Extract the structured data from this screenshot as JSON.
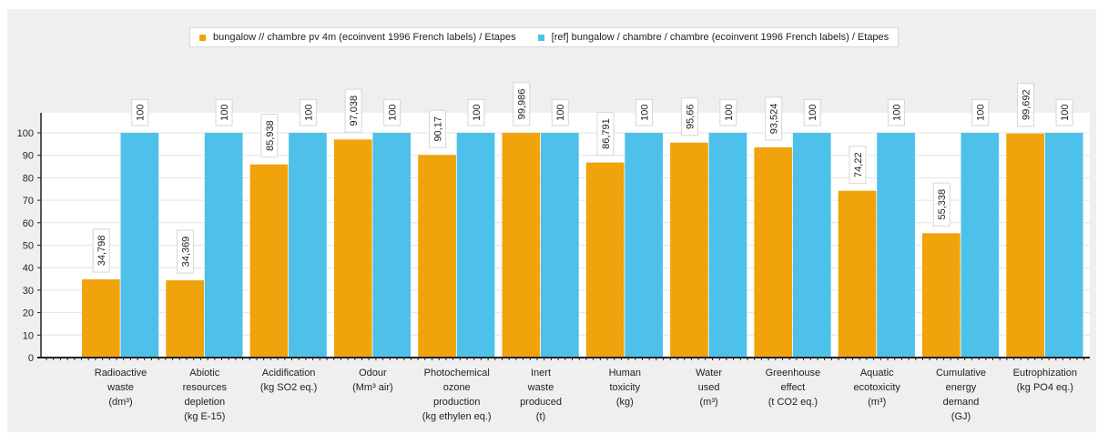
{
  "chart_data": {
    "type": "bar",
    "categories": [
      [
        "Radioactive",
        "waste",
        "(dm³)"
      ],
      [
        "Abiotic",
        "resources",
        "depletion",
        "(kg E-15)"
      ],
      [
        "Acidification",
        "(kg SO2 eq.)"
      ],
      [
        "Odour",
        "(Mm³ air)"
      ],
      [
        "Photochemical",
        "ozone",
        "production",
        "(kg ethylen eq.)"
      ],
      [
        "Inert",
        "waste",
        "produced",
        "(t)"
      ],
      [
        "Human",
        "toxicity",
        "(kg)"
      ],
      [
        "Water",
        "used",
        "(m³)"
      ],
      [
        "Greenhouse",
        "effect",
        "(t CO2 eq.)"
      ],
      [
        "Aquatic",
        "ecotoxicity",
        "(m³)"
      ],
      [
        "Cumulative",
        "energy",
        "demand",
        "(GJ)"
      ],
      [
        "Eutrophization",
        "(kg PO4 eq.)"
      ]
    ],
    "series": [
      {
        "name": "bungalow // chambre  pv 4m (ecoinvent 1996 French labels) / Etapes",
        "color": "#f0a30a",
        "values": [
          34.798,
          34.369,
          85.938,
          97.038,
          90.17,
          99.986,
          86.791,
          95.66,
          93.524,
          74.22,
          55.338,
          99.692
        ],
        "labels": [
          "34,798",
          "34,369",
          "85,938",
          "97,038",
          "90,17",
          "99,986",
          "86,791",
          "95,66",
          "93,524",
          "74,22",
          "55,338",
          "99,692"
        ]
      },
      {
        "name": "[ref] bungalow / chambre  / chambre (ecoinvent 1996 French labels) / Etapes",
        "color": "#4dc1ea",
        "values": [
          100,
          100,
          100,
          100,
          100,
          100,
          100,
          100,
          100,
          100,
          100,
          100
        ],
        "labels": [
          "100",
          "100",
          "100",
          "100",
          "100",
          "100",
          "100",
          "100",
          "100",
          "100",
          "100",
          "100"
        ]
      }
    ],
    "ylim": [
      0,
      100
    ],
    "yticks": [
      0,
      10,
      20,
      30,
      40,
      50,
      60,
      70,
      80,
      90,
      100
    ],
    "grid": true,
    "legend": "top-center"
  }
}
